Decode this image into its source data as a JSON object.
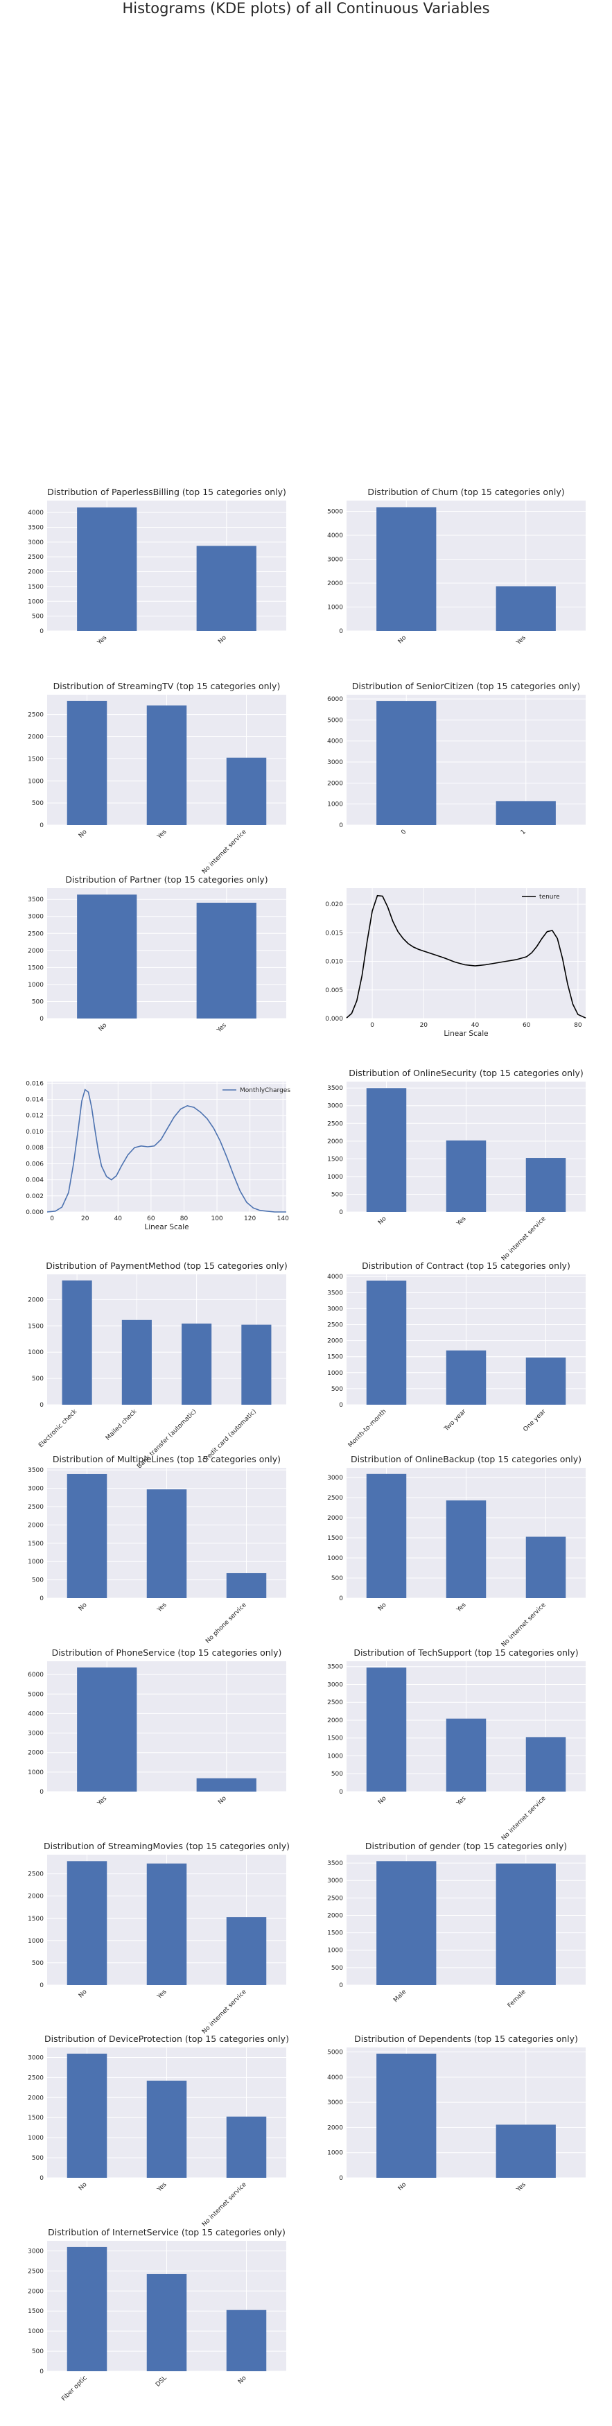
{
  "figure": {
    "title": "Histograms (KDE plots) of all Continuous Variables"
  },
  "chart_data": [
    {
      "type": "bar",
      "title": "Distribution of PaperlessBilling (top 15 categories only)",
      "categories": [
        "Yes",
        "No"
      ],
      "values": [
        4171,
        2872
      ],
      "ylim": [
        0,
        4400
      ],
      "yticks": [
        0,
        500,
        1000,
        1500,
        2000,
        2500,
        3000,
        3500,
        4000
      ],
      "grid": true
    },
    {
      "type": "bar",
      "title": "Distribution of Churn (top 15 categories only)",
      "categories": [
        "No",
        "Yes"
      ],
      "values": [
        5174,
        1869
      ],
      "ylim": [
        0,
        5450
      ],
      "yticks": [
        0,
        1000,
        2000,
        3000,
        4000,
        5000
      ],
      "grid": true
    },
    {
      "type": "bar",
      "title": "Distribution of StreamingTV (top 15 categories only)",
      "categories": [
        "No",
        "Yes",
        "No internet service"
      ],
      "values": [
        2810,
        2707,
        1526
      ],
      "ylim": [
        0,
        2950
      ],
      "yticks": [
        0,
        500,
        1000,
        1500,
        2000,
        2500
      ],
      "grid": true
    },
    {
      "type": "bar",
      "title": "Distribution of SeniorCitizen (top 15 categories only)",
      "categories": [
        "0",
        "1"
      ],
      "values": [
        5901,
        1142
      ],
      "ylim": [
        0,
        6200
      ],
      "yticks": [
        0,
        1000,
        2000,
        3000,
        4000,
        5000,
        6000
      ],
      "grid": true
    },
    {
      "type": "bar",
      "title": "Distribution of Partner (top 15 categories only)",
      "categories": [
        "No",
        "Yes"
      ],
      "values": [
        3641,
        3402
      ],
      "ylim": [
        0,
        3830
      ],
      "yticks": [
        0,
        500,
        1000,
        1500,
        2000,
        2500,
        3000,
        3500
      ],
      "grid": true
    },
    {
      "type": "line",
      "kde": true,
      "legend": [
        "tenure"
      ],
      "legend_position": "top-right",
      "xlabel": "Linear Scale",
      "xlim": [
        -10,
        83
      ],
      "ylim": [
        0,
        0.0228
      ],
      "xticks": [
        0,
        20,
        40,
        60,
        80
      ],
      "yticks": [
        0,
        0.005,
        0.01,
        0.015,
        0.02
      ],
      "ytick_labels": [
        "0.000",
        "0.005",
        "0.010",
        "0.015",
        "0.020"
      ],
      "series": [
        {
          "name": "tenure",
          "color": "#000000",
          "x": [
            -10,
            -8,
            -6,
            -4,
            -2,
            0,
            2,
            4,
            6,
            8,
            10,
            12,
            14,
            16,
            18,
            20,
            24,
            28,
            32,
            36,
            40,
            44,
            48,
            52,
            56,
            60,
            62,
            64,
            66,
            68,
            70,
            72,
            74,
            76,
            78,
            80,
            83
          ],
          "y": [
            0.0001,
            0.0009,
            0.0031,
            0.0075,
            0.0135,
            0.0188,
            0.0215,
            0.0214,
            0.0195,
            0.017,
            0.0152,
            0.014,
            0.0131,
            0.0125,
            0.0121,
            0.0118,
            0.0112,
            0.0106,
            0.0099,
            0.0094,
            0.0092,
            0.0094,
            0.0097,
            0.01,
            0.0103,
            0.0108,
            0.0115,
            0.0126,
            0.014,
            0.0152,
            0.0154,
            0.014,
            0.0105,
            0.006,
            0.0025,
            0.0007,
            0.0001
          ]
        }
      ]
    },
    {
      "type": "line",
      "kde": true,
      "legend": [
        "MonthlyCharges"
      ],
      "legend_position": "top-right",
      "xlabel": "Linear Scale",
      "xlim": [
        -3,
        142
      ],
      "ylim": [
        0,
        0.0162
      ],
      "xticks": [
        0,
        20,
        40,
        60,
        80,
        100,
        120,
        140
      ],
      "yticks": [
        0,
        0.002,
        0.004,
        0.006,
        0.008,
        0.01,
        0.012,
        0.014,
        0.016
      ],
      "ytick_labels": [
        "0.000",
        "0.002",
        "0.004",
        "0.006",
        "0.008",
        "0.010",
        "0.012",
        "0.014",
        "0.016"
      ],
      "series": [
        {
          "name": "MonthlyCharges",
          "color": "#4c72b0",
          "x": [
            -3,
            2,
            6,
            10,
            13,
            16,
            18,
            20,
            22,
            24,
            26,
            28,
            30,
            33,
            36,
            39,
            42,
            46,
            50,
            54,
            58,
            62,
            66,
            70,
            74,
            78,
            82,
            86,
            90,
            94,
            98,
            102,
            106,
            110,
            114,
            118,
            122,
            126,
            130,
            135,
            142
          ],
          "y": [
            0,
            0.0001,
            0.0006,
            0.0024,
            0.006,
            0.0105,
            0.0138,
            0.0152,
            0.0149,
            0.013,
            0.0102,
            0.0076,
            0.0057,
            0.0044,
            0.004,
            0.0045,
            0.0057,
            0.0071,
            0.008,
            0.0082,
            0.0081,
            0.0082,
            0.009,
            0.0104,
            0.0118,
            0.0128,
            0.0132,
            0.013,
            0.0124,
            0.0116,
            0.0104,
            0.0088,
            0.0068,
            0.0046,
            0.0026,
            0.0012,
            0.0005,
            0.0002,
            0.0001,
            0,
            0
          ]
        }
      ]
    },
    {
      "type": "bar",
      "title": "Distribution of OnlineSecurity (top 15 categories only)",
      "categories": [
        "No",
        "Yes",
        "No internet service"
      ],
      "values": [
        3498,
        2019,
        1526
      ],
      "ylim": [
        0,
        3680
      ],
      "yticks": [
        0,
        500,
        1000,
        1500,
        2000,
        2500,
        3000,
        3500
      ],
      "grid": true
    },
    {
      "type": "bar",
      "title": "Distribution of PaymentMethod (top 15 categories only)",
      "categories": [
        "Electronic check",
        "Mailed check",
        "Bank transfer (automatic)",
        "Credit card (automatic)"
      ],
      "values": [
        2365,
        1612,
        1544,
        1522
      ],
      "ylim": [
        0,
        2480
      ],
      "yticks": [
        0,
        500,
        1000,
        1500,
        2000
      ],
      "grid": true
    },
    {
      "type": "bar",
      "title": "Distribution of Contract (top 15 categories only)",
      "categories": [
        "Month-to-month",
        "Two year",
        "One year"
      ],
      "values": [
        3875,
        1695,
        1473
      ],
      "ylim": [
        0,
        4070
      ],
      "yticks": [
        0,
        500,
        1000,
        1500,
        2000,
        2500,
        3000,
        3500,
        4000
      ],
      "grid": true
    },
    {
      "type": "bar",
      "title": "Distribution of MultipleLines (top 15 categories only)",
      "categories": [
        "No",
        "Yes",
        "No phone service"
      ],
      "values": [
        3390,
        2971,
        682
      ],
      "ylim": [
        0,
        3560
      ],
      "yticks": [
        0,
        500,
        1000,
        1500,
        2000,
        2500,
        3000,
        3500
      ],
      "grid": true
    },
    {
      "type": "bar",
      "title": "Distribution of OnlineBackup (top 15 categories only)",
      "categories": [
        "No",
        "Yes",
        "No internet service"
      ],
      "values": [
        3088,
        2429,
        1526
      ],
      "ylim": [
        0,
        3240
      ],
      "yticks": [
        0,
        500,
        1000,
        1500,
        2000,
        2500,
        3000
      ],
      "grid": true
    },
    {
      "type": "bar",
      "title": "Distribution of PhoneService (top 15 categories only)",
      "categories": [
        "Yes",
        "No"
      ],
      "values": [
        6361,
        682
      ],
      "ylim": [
        0,
        6680
      ],
      "yticks": [
        0,
        1000,
        2000,
        3000,
        4000,
        5000,
        6000
      ],
      "grid": true
    },
    {
      "type": "bar",
      "title": "Distribution of TechSupport (top 15 categories only)",
      "categories": [
        "No",
        "Yes",
        "No internet service"
      ],
      "values": [
        3473,
        2044,
        1526
      ],
      "ylim": [
        0,
        3650
      ],
      "yticks": [
        0,
        500,
        1000,
        1500,
        2000,
        2500,
        3000,
        3500
      ],
      "grid": true
    },
    {
      "type": "bar",
      "title": "Distribution of StreamingMovies (top 15 categories only)",
      "categories": [
        "No",
        "Yes",
        "No internet service"
      ],
      "values": [
        2785,
        2732,
        1526
      ],
      "ylim": [
        0,
        2930
      ],
      "yticks": [
        0,
        500,
        1000,
        1500,
        2000,
        2500
      ],
      "grid": true
    },
    {
      "type": "bar",
      "title": "Distribution of gender (top 15 categories only)",
      "categories": [
        "Male",
        "Female"
      ],
      "values": [
        3555,
        3488
      ],
      "ylim": [
        0,
        3740
      ],
      "yticks": [
        0,
        500,
        1000,
        1500,
        2000,
        2500,
        3000,
        3500
      ],
      "grid": true
    },
    {
      "type": "bar",
      "title": "Distribution of DeviceProtection (top 15 categories only)",
      "categories": [
        "No",
        "Yes",
        "No internet service"
      ],
      "values": [
        3095,
        2422,
        1526
      ],
      "ylim": [
        0,
        3250
      ],
      "yticks": [
        0,
        500,
        1000,
        1500,
        2000,
        2500,
        3000
      ],
      "grid": true
    },
    {
      "type": "bar",
      "title": "Distribution of Dependents (top 15 categories only)",
      "categories": [
        "No",
        "Yes"
      ],
      "values": [
        4933,
        2110
      ],
      "ylim": [
        0,
        5180
      ],
      "yticks": [
        0,
        1000,
        2000,
        3000,
        4000,
        5000
      ],
      "grid": true
    },
    {
      "type": "bar",
      "title": "Distribution of InternetService (top 15 categories only)",
      "categories": [
        "Fiber optic",
        "DSL",
        "No"
      ],
      "values": [
        3096,
        2421,
        1526
      ],
      "ylim": [
        0,
        3250
      ],
      "yticks": [
        0,
        500,
        1000,
        1500,
        2000,
        2500,
        3000
      ],
      "grid": true
    }
  ],
  "colors": {
    "bar": "#4c72b0",
    "axes_bg": "#eaeaf2",
    "grid": "#ffffff",
    "kde_tenure": "#000000",
    "kde_monthly": "#4c72b0"
  }
}
